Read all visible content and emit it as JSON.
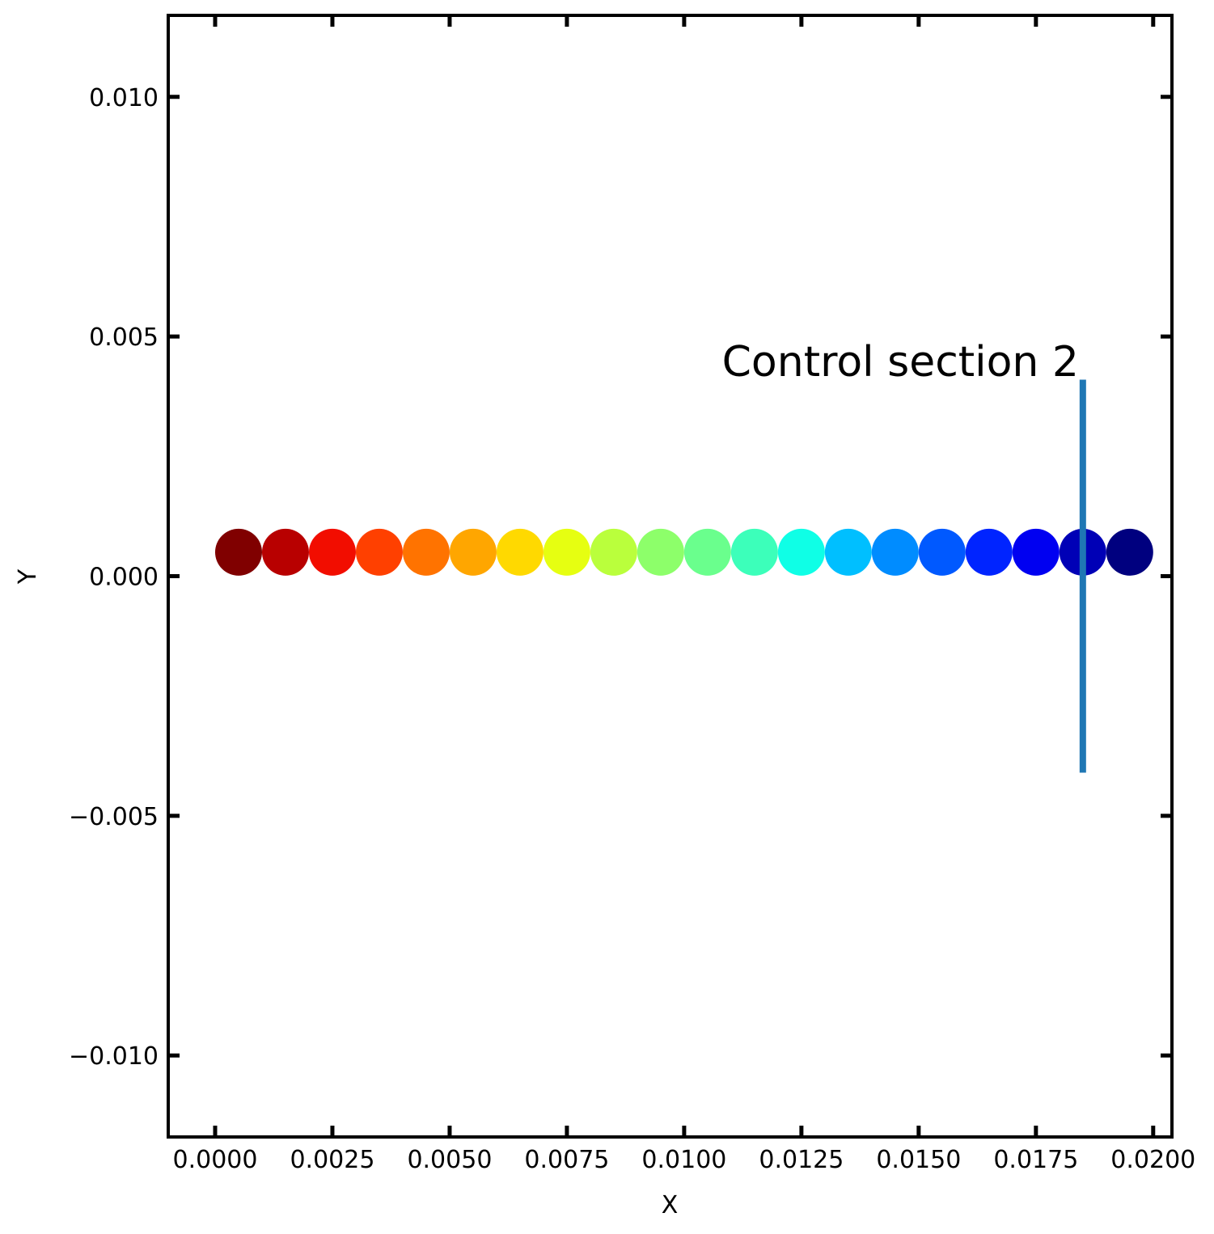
{
  "chart_data": {
    "type": "scatter",
    "title": "",
    "xlabel": "X",
    "ylabel": "Y",
    "xlim": [
      -0.001,
      0.0204
    ],
    "ylim": [
      -0.0117,
      0.0117
    ],
    "xticks": [
      0.0,
      0.0025,
      0.005,
      0.0075,
      0.01,
      0.0125,
      0.015,
      0.0175,
      0.02
    ],
    "xtick_labels": [
      "0.0000",
      "0.0025",
      "0.0050",
      "0.0075",
      "0.0100",
      "0.0125",
      "0.0150",
      "0.0175",
      "0.0200"
    ],
    "yticks": [
      -0.01,
      -0.005,
      0.0,
      0.005,
      0.01
    ],
    "ytick_labels": [
      "−0.010",
      "−0.005",
      "0.000",
      "0.005",
      "0.010"
    ],
    "grid": false,
    "legend": "none",
    "points": {
      "x": [
        0.0005,
        0.0015,
        0.0025,
        0.0035,
        0.0045,
        0.0055,
        0.0065,
        0.0075,
        0.0085,
        0.0095,
        0.0105,
        0.0115,
        0.0125,
        0.0135,
        0.0145,
        0.0155,
        0.0165,
        0.0175,
        0.0185,
        0.0195
      ],
      "y": [
        0.0005,
        0.0005,
        0.0005,
        0.0005,
        0.0005,
        0.0005,
        0.0005,
        0.0005,
        0.0005,
        0.0005,
        0.0005,
        0.0005,
        0.0005,
        0.0005,
        0.0005,
        0.0005,
        0.0005,
        0.0005,
        0.0005,
        0.0005
      ],
      "colors": [
        "#800000",
        "#b80000",
        "#f20d00",
        "#ff4000",
        "#ff7300",
        "#ffa600",
        "#ffd900",
        "#e6ff11",
        "#baff3c",
        "#8dff6a",
        "#6aff8d",
        "#3cffba",
        "#0fffe6",
        "#00bfff",
        "#008cff",
        "#0059ff",
        "#0024ff",
        "#0000f1",
        "#0000b6",
        "#00007f"
      ]
    },
    "control_line": {
      "x": 0.0185,
      "y_start": -0.0041,
      "y_end": 0.0041,
      "color": "#1f77b4"
    },
    "annotation": {
      "text": "Control section 2",
      "x": 0.0185,
      "y": 0.0041
    }
  }
}
